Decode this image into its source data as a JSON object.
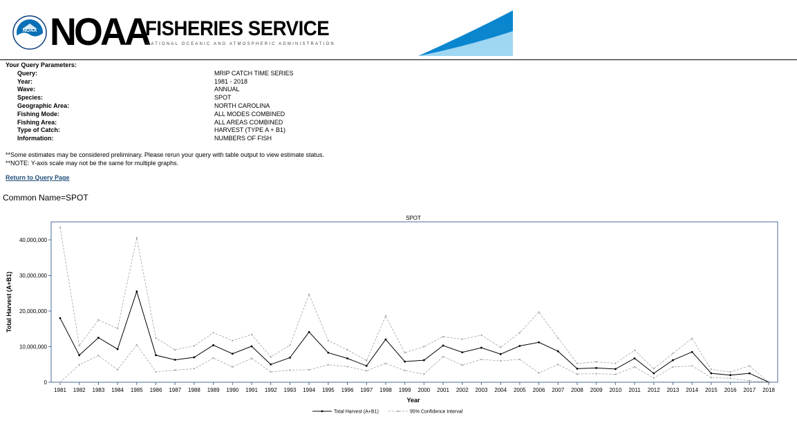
{
  "header": {
    "logo_text": "NOAA",
    "brand_main": "NOAA",
    "brand_service": "FISHERIES SERVICE",
    "brand_subtitle": "NATIONAL OCEANIC AND ATMOSPHERIC ADMINISTRATION",
    "icons": [
      "noaa-seal-icon",
      "wave-swoosh-icon"
    ],
    "colors": {
      "noaa_blue": "#0a6fb5",
      "swoosh_light": "#9fd6f2"
    }
  },
  "params": {
    "heading": "Your Query Parameters:",
    "rows": [
      {
        "label": "Query:",
        "value": "MRIP CATCH TIME SERIES"
      },
      {
        "label": "Year:",
        "value": "1981 - 2018"
      },
      {
        "label": "Wave:",
        "value": "ANNUAL"
      },
      {
        "label": "Species:",
        "value": "SPOT"
      },
      {
        "label": "Geographic Area:",
        "value": "NORTH CAROLINA"
      },
      {
        "label": "Fishing Mode:",
        "value": "ALL MODES COMBINED"
      },
      {
        "label": "Fishing Area:",
        "value": "ALL AREAS COMBINED"
      },
      {
        "label": "Type of Catch:",
        "value": "HARVEST (TYPE A + B1)"
      },
      {
        "label": "Information:",
        "value": "NUMBERS OF FISH"
      }
    ]
  },
  "notes": {
    "line1": "**Some estimates may be considered preliminary. Please rerun your query with table output to view estimate status.",
    "line2": "**NOTE: Y-axis scale may not be the same for multiple graphs."
  },
  "links": {
    "return_label": "Return to Query Page"
  },
  "common_name": "Common Name=SPOT",
  "chart_data": {
    "type": "line",
    "title": "SPOT",
    "xlabel": "Year",
    "ylabel": "Total Harvest (A+B1)",
    "ylim": [
      0,
      43500000
    ],
    "yticks": [
      0,
      10000000,
      20000000,
      30000000,
      40000000
    ],
    "ytick_labels": [
      "0",
      "10,000,000",
      "20,000,000",
      "30,000,000",
      "40,000,000"
    ],
    "x": [
      1981,
      1982,
      1983,
      1984,
      1985,
      1986,
      1987,
      1988,
      1989,
      1990,
      1991,
      1992,
      1993,
      1994,
      1995,
      1996,
      1997,
      1998,
      1999,
      2000,
      2001,
      2002,
      2003,
      2004,
      2005,
      2006,
      2007,
      2008,
      2009,
      2010,
      2011,
      2012,
      2013,
      2014,
      2015,
      2016,
      2017,
      2018
    ],
    "grid": false,
    "legend_position": "bottom",
    "series": [
      {
        "name": "Total Harvest (A+B1)",
        "style": "solid",
        "color": "#000000",
        "values": [
          18000000,
          7600000,
          12500000,
          9300000,
          25500000,
          7600000,
          6300000,
          7000000,
          10400000,
          8000000,
          10100000,
          5000000,
          6900000,
          14100000,
          8300000,
          6700000,
          4600000,
          12000000,
          5800000,
          6200000,
          10300000,
          8400000,
          9700000,
          7900000,
          10200000,
          11200000,
          8700000,
          3800000,
          4000000,
          3700000,
          6700000,
          2500000,
          6200000,
          8500000,
          2500000,
          2000000,
          2500000,
          0
        ]
      },
      {
        "name": "95% Confidence Interval",
        "style": "dashed",
        "color": "#a0a0a0",
        "values": [
          43500000,
          10300000,
          17500000,
          15100000,
          40600000,
          12400000,
          9100000,
          10200000,
          13900000,
          11700000,
          13400000,
          7100000,
          10400000,
          24700000,
          11700000,
          9100000,
          6100000,
          18600000,
          8300000,
          10000000,
          12800000,
          12100000,
          13200000,
          9800000,
          13900000,
          19700000,
          12400000,
          5300000,
          5700000,
          5300000,
          9000000,
          3800000,
          8100000,
          12300000,
          3600000,
          2900000,
          4600000,
          0
        ]
      },
      {
        "name": "95% Confidence Interval",
        "style": "dashed",
        "color": "#a0a0a0",
        "values": [
          0,
          4900000,
          7500000,
          3500000,
          10500000,
          2900000,
          3400000,
          3800000,
          6800000,
          4300000,
          6700000,
          2900000,
          3400000,
          3500000,
          4900000,
          4400000,
          3200000,
          5300000,
          3300000,
          2300000,
          7200000,
          4800000,
          6400000,
          6000000,
          6400000,
          2600000,
          5000000,
          2300000,
          2400000,
          2200000,
          4300000,
          1200000,
          4300000,
          4600000,
          1300000,
          1100000,
          400000,
          0
        ]
      }
    ]
  }
}
